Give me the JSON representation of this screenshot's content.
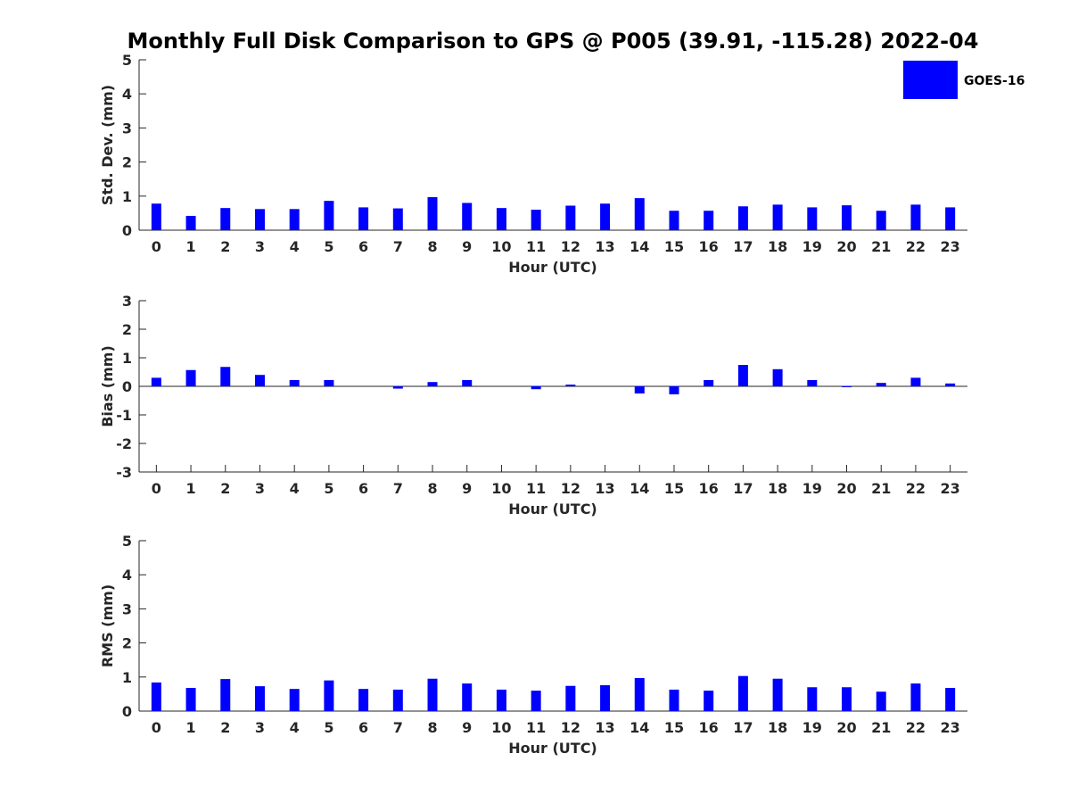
{
  "chart_data": {
    "type": "bar",
    "title": "Monthly Full Disk Comparison to GPS @ P005 (39.91, -115.28) 2022-04",
    "legend": {
      "entries": [
        "GOES-16"
      ],
      "placement": "top-right",
      "color": "#0000ff"
    },
    "bar_color": "#0000ff",
    "categories": [
      "0",
      "1",
      "2",
      "3",
      "4",
      "5",
      "6",
      "7",
      "8",
      "9",
      "10",
      "11",
      "12",
      "13",
      "14",
      "15",
      "16",
      "17",
      "18",
      "19",
      "20",
      "21",
      "22",
      "23"
    ],
    "panels": [
      {
        "id": "std",
        "ylabel": "Std. Dev. (mm)",
        "xlabel": "Hour (UTC)",
        "ylim": [
          0,
          5
        ],
        "yticks": [
          "0",
          "1",
          "2",
          "3",
          "4",
          "5"
        ],
        "series": [
          {
            "name": "GOES-16",
            "values": [
              0.78,
              0.42,
              0.65,
              0.62,
              0.62,
              0.86,
              0.67,
              0.64,
              0.97,
              0.8,
              0.65,
              0.6,
              0.72,
              0.78,
              0.94,
              0.57,
              0.57,
              0.7,
              0.75,
              0.67,
              0.73,
              0.57,
              0.75,
              0.67
            ]
          }
        ]
      },
      {
        "id": "bias",
        "ylabel": "Bias (mm)",
        "xlabel": "Hour (UTC)",
        "ylim": [
          -3,
          3
        ],
        "yticks": [
          "-3",
          "-2",
          "-1",
          "0",
          "1",
          "2",
          "3"
        ],
        "series": [
          {
            "name": "GOES-16",
            "values": [
              0.3,
              0.57,
              0.68,
              0.4,
              0.22,
              0.22,
              0.0,
              -0.08,
              0.15,
              0.22,
              0.0,
              -0.1,
              0.06,
              0.0,
              -0.25,
              -0.28,
              0.22,
              0.75,
              0.6,
              0.22,
              -0.03,
              0.12,
              0.3,
              0.1
            ]
          }
        ]
      },
      {
        "id": "rms",
        "ylabel": "RMS (mm)",
        "xlabel": "Hour (UTC)",
        "ylim": [
          0,
          5
        ],
        "yticks": [
          "0",
          "1",
          "2",
          "3",
          "4",
          "5"
        ],
        "series": [
          {
            "name": "GOES-16",
            "values": [
              0.84,
              0.68,
              0.94,
              0.73,
              0.65,
              0.9,
              0.65,
              0.63,
              0.95,
              0.81,
              0.63,
              0.6,
              0.74,
              0.76,
              0.97,
              0.63,
              0.6,
              1.03,
              0.95,
              0.7,
              0.7,
              0.57,
              0.81,
              0.68
            ]
          }
        ]
      }
    ]
  }
}
